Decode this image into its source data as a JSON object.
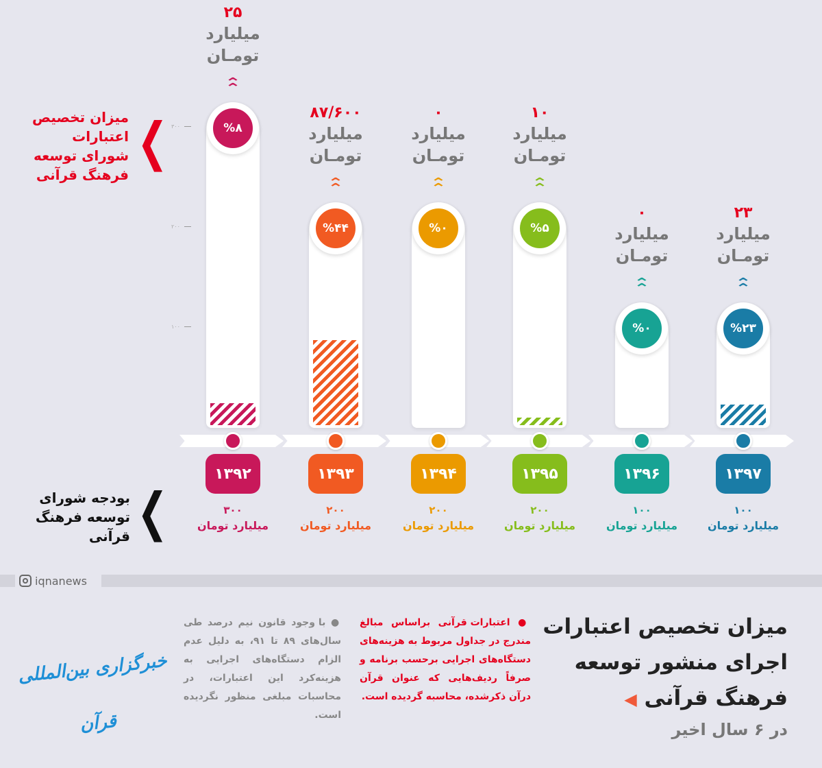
{
  "chart_data": {
    "type": "bar",
    "categories": [
      "۱۳۹۲",
      "۱۳۹۳",
      "۱۳۹۴",
      "۱۳۹۵",
      "۱۳۹۶",
      "۱۳۹۷"
    ],
    "budget_labels": [
      "۳۰۰",
      "۲۰۰",
      "۲۰۰",
      "۲۰۰",
      "۱۰۰",
      "۱۰۰"
    ],
    "budget_values": [
      300,
      200,
      200,
      200,
      100,
      100
    ],
    "allocated_labels": [
      "۲۵",
      "۸۷/۶۰۰",
      "۰",
      "۱۰",
      "۰",
      "۲۳"
    ],
    "allocated_values": [
      25,
      87.6,
      0,
      10,
      0,
      23
    ],
    "percent_labels": [
      "%۸",
      "%۴۴",
      "%۰",
      "%۵",
      "%۰",
      "%۲۳"
    ],
    "unit_line1": "میلیارد",
    "unit_line2": "تومـان",
    "budget_unit": "میلیارد تومان",
    "yticks": [
      "۱۰۰",
      "۲۰۰",
      "۳۰۰"
    ],
    "ytick_values": [
      100,
      200,
      300
    ],
    "ylim": [
      0,
      300
    ],
    "colors": [
      "#c8185a",
      "#f15a22",
      "#eb9a00",
      "#86bd1c",
      "#17a394",
      "#1a7ca6"
    ]
  },
  "labels": {
    "allocated_legend": "میزان تخصیص اعتبارات شورای توسعه فرهنگ قرآنی",
    "budget_legend": "بودجه شورای توسعه فرهنگ قرآنی"
  },
  "footer": {
    "social": "iqnanews",
    "title": "میزان تخصیص اعتبارات اجرای منشور توسعه فرهنگ قرآنی",
    "subtitle": "در ۶ سال اخیر",
    "note_red": "اعتبارات قرآنی براساس مبالغ مندرج در جداول مربوط به هزینه‌های دستگاه‌های اجرایی برحسب برنامه و صرفاً ردیف‌هایی که عنوان قرآن درآن ذکرشده، محاسبه گردیده است.",
    "note_gray": "با وجود قانون نیم درصد طی سال‌های ۸۹ تا ۹۱، به دلیل عدم الزام دستگاه‌های اجرایی به هزینه‌کرد این اعتبارات، در محاسبات مبلغی منظور نگردیده است.",
    "logo": "خبرگزاری بین‌المللی قرآن",
    "accent_red": "#e5001e",
    "logo_color": "#1e8fd6"
  }
}
